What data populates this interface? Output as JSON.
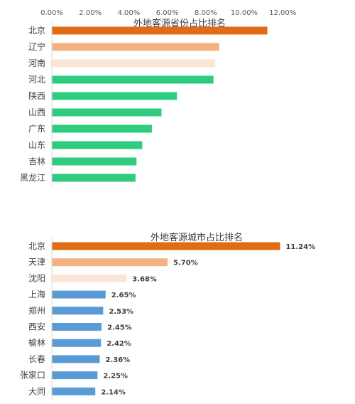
{
  "chart_data": [
    {
      "type": "bar",
      "orientation": "horizontal",
      "title": "外地客源省份占比排名",
      "categories": [
        "北京",
        "辽宁",
        "河南",
        "河北",
        "陕西",
        "山西",
        "广东",
        "山东",
        "吉林",
        "黑龙江"
      ],
      "values": [
        11.2,
        8.7,
        8.5,
        8.4,
        6.5,
        5.7,
        5.2,
        4.7,
        4.4,
        4.35
      ],
      "colors": [
        "#E26B16",
        "#F4B183",
        "#FBE5D6",
        "#2ECC7F",
        "#2ECC7F",
        "#2ECC7F",
        "#2ECC7F",
        "#2ECC7F",
        "#2ECC7F",
        "#2ECC7F"
      ],
      "xlim": [
        0,
        12
      ],
      "xticks": [
        "0.00%",
        "2.00%",
        "4.00%",
        "6.00%",
        "8.00%",
        "10.00%",
        "12.00%"
      ],
      "axis_position": "top",
      "grid": false,
      "legend": "none"
    },
    {
      "type": "bar",
      "orientation": "horizontal",
      "title": "外地客源城市占比排名",
      "categories": [
        "北京",
        "天津",
        "沈阳",
        "上海",
        "郑州",
        "西安",
        "榆林",
        "长春",
        "张家口",
        "大同"
      ],
      "values": [
        11.24,
        5.7,
        3.68,
        2.65,
        2.53,
        2.45,
        2.42,
        2.36,
        2.25,
        2.14
      ],
      "data_labels": [
        "11.24%",
        "5.70%",
        "3.68%",
        "2.65%",
        "2.53%",
        "2.45%",
        "2.42%",
        "2.36%",
        "2.25%",
        "2.14%"
      ],
      "colors": [
        "#E26B16",
        "#F4B183",
        "#FBE5D6",
        "#5B9BD5",
        "#5B9BD5",
        "#5B9BD5",
        "#5B9BD5",
        "#5B9BD5",
        "#5B9BD5",
        "#5B9BD5"
      ],
      "xlim": [
        0,
        12
      ],
      "grid": false,
      "legend": "none"
    }
  ]
}
